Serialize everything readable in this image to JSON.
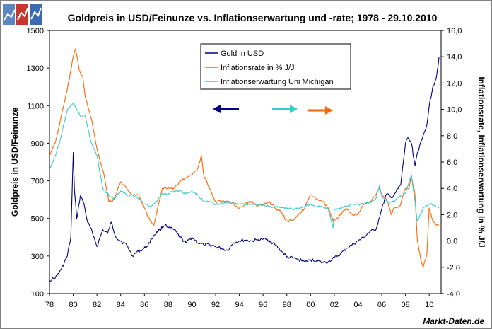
{
  "brand": {
    "name": "Markt-Daten.de"
  },
  "chart_data": {
    "type": "line",
    "title": "Goldpreis in USD/Feinunze vs. Inflationserwartung und -rate; 1978 - 29.10.2010",
    "ylabel_left": "Goldpreis in USD/Feinunze",
    "ylabel_right": "Inflationsrate, Inflationserwartung in % J/J",
    "xlim": [
      1978,
      2011
    ],
    "ylim_left": [
      100,
      1500
    ],
    "ylim_right": [
      -4,
      16
    ],
    "x_ticks": [
      "78",
      "80",
      "82",
      "84",
      "86",
      "88",
      "90",
      "92",
      "94",
      "96",
      "98",
      "00",
      "02",
      "04",
      "06",
      "08",
      "10"
    ],
    "x_tick_years": [
      1978,
      1980,
      1982,
      1984,
      1986,
      1988,
      1990,
      1992,
      1994,
      1996,
      1998,
      2000,
      2002,
      2004,
      2006,
      2008,
      2010
    ],
    "y_ticks_left": [
      "100",
      "300",
      "500",
      "700",
      "900",
      "1100",
      "1300",
      "1500"
    ],
    "y_ticks_right": [
      "-4,0",
      "-2,0",
      "0,0",
      "2,0",
      "4,0",
      "6,0",
      "8,0",
      "10,0",
      "12,0",
      "14,0",
      "16,0"
    ],
    "colors": {
      "gold": "#000080",
      "inflation": "#ff6600",
      "expectation": "#33cccc",
      "axis": "#000000",
      "plot_bg": "#ffffff"
    },
    "series": [
      {
        "name": "Gold in USD",
        "axis": "left",
        "color": "#000080",
        "x": [
          1978.0,
          1978.5,
          1979.0,
          1979.5,
          1979.8,
          1980.0,
          1980.1,
          1980.3,
          1980.6,
          1980.9,
          1981.2,
          1981.6,
          1982.0,
          1982.5,
          1982.9,
          1983.2,
          1983.6,
          1984.0,
          1984.5,
          1985.0,
          1985.3,
          1985.7,
          1986.2,
          1986.8,
          1987.3,
          1987.8,
          1988.0,
          1988.5,
          1989.0,
          1989.5,
          1990.0,
          1990.5,
          1991.0,
          1991.5,
          1992.0,
          1992.5,
          1993.0,
          1993.5,
          1994.0,
          1994.5,
          1995.0,
          1995.5,
          1996.0,
          1996.5,
          1997.0,
          1997.5,
          1998.0,
          1998.5,
          1999.0,
          1999.7,
          2000.0,
          2000.5,
          2001.0,
          2001.5,
          2002.0,
          2002.5,
          2003.0,
          2003.5,
          2004.0,
          2004.5,
          2005.0,
          2005.5,
          2006.0,
          2006.4,
          2006.8,
          2007.2,
          2007.6,
          2008.0,
          2008.2,
          2008.5,
          2008.8,
          2009.0,
          2009.4,
          2009.8,
          2010.0,
          2010.3,
          2010.6,
          2010.83
        ],
        "y": [
          170,
          185,
          230,
          300,
          400,
          850,
          650,
          500,
          620,
          580,
          480,
          430,
          350,
          440,
          420,
          480,
          400,
          380,
          360,
          300,
          320,
          330,
          350,
          410,
          440,
          470,
          450,
          440,
          400,
          370,
          400,
          370,
          360,
          360,
          350,
          340,
          330,
          370,
          380,
          385,
          380,
          385,
          390,
          385,
          360,
          330,
          295,
          290,
          280,
          270,
          280,
          275,
          265,
          270,
          290,
          310,
          340,
          360,
          380,
          400,
          430,
          440,
          550,
          630,
          610,
          640,
          680,
          900,
          930,
          900,
          780,
          850,
          920,
          1000,
          1100,
          1200,
          1250,
          1360
        ]
      },
      {
        "name": "Inflationsrate in % J/J",
        "axis": "right",
        "color": "#ff6600",
        "x": [
          1978.0,
          1978.5,
          1979.0,
          1979.5,
          1980.0,
          1980.2,
          1980.5,
          1980.8,
          1981.0,
          1981.3,
          1981.6,
          1982.0,
          1982.3,
          1982.6,
          1983.0,
          1983.3,
          1983.6,
          1984.0,
          1984.5,
          1985.0,
          1985.5,
          1986.0,
          1986.5,
          1986.8,
          1987.0,
          1987.5,
          1988.0,
          1988.5,
          1989.0,
          1989.5,
          1990.0,
          1990.5,
          1990.8,
          1991.0,
          1991.5,
          1992.0,
          1992.5,
          1993.0,
          1993.5,
          1994.0,
          1994.5,
          1995.0,
          1995.5,
          1996.0,
          1996.5,
          1997.0,
          1997.5,
          1998.0,
          1998.5,
          1999.0,
          1999.5,
          2000.0,
          2000.5,
          2001.0,
          2001.5,
          2001.9,
          2002.0,
          2002.5,
          2003.0,
          2003.5,
          2004.0,
          2004.5,
          2005.0,
          2005.5,
          2005.8,
          2006.0,
          2006.5,
          2006.8,
          2007.0,
          2007.5,
          2008.0,
          2008.3,
          2008.5,
          2008.8,
          2009.0,
          2009.3,
          2009.5,
          2009.8,
          2010.0,
          2010.3,
          2010.6,
          2010.83
        ],
        "y": [
          6.5,
          7.5,
          9.5,
          11.5,
          14.0,
          14.6,
          13.0,
          12.5,
          11.0,
          10.0,
          9.0,
          7.0,
          6.0,
          5.0,
          3.0,
          3.0,
          3.5,
          4.5,
          4.0,
          3.5,
          3.5,
          2.5,
          1.5,
          1.2,
          2.0,
          4.0,
          4.0,
          4.0,
          4.5,
          4.8,
          5.0,
          5.5,
          6.5,
          5.0,
          4.0,
          3.0,
          3.0,
          3.0,
          2.8,
          2.5,
          2.8,
          3.0,
          2.6,
          2.8,
          3.0,
          2.5,
          2.2,
          1.5,
          1.6,
          2.0,
          2.5,
          3.5,
          3.2,
          3.0,
          2.5,
          1.5,
          1.5,
          2.0,
          2.5,
          2.0,
          2.0,
          2.8,
          3.0,
          3.5,
          4.0,
          3.5,
          3.0,
          2.0,
          2.5,
          2.6,
          4.0,
          4.0,
          5.0,
          3.5,
          0.0,
          -1.5,
          -2.0,
          -1.0,
          2.5,
          1.5,
          1.2,
          1.2
        ]
      },
      {
        "name": "Inflationserwartung Uni Michigan",
        "axis": "right",
        "color": "#33cccc",
        "x": [
          1978.0,
          1978.5,
          1979.0,
          1979.5,
          1980.0,
          1980.3,
          1980.6,
          1981.0,
          1981.5,
          1982.0,
          1982.5,
          1983.0,
          1983.5,
          1984.0,
          1984.5,
          1985.0,
          1985.5,
          1986.0,
          1986.5,
          1987.0,
          1987.5,
          1988.0,
          1988.5,
          1989.0,
          1989.5,
          1990.0,
          1990.5,
          1991.0,
          1991.5,
          1992.0,
          1993.0,
          1994.0,
          1995.0,
          1996.0,
          1997.0,
          1998.0,
          1998.5,
          1999.0,
          2000.0,
          2000.5,
          2001.0,
          2001.5,
          2001.9,
          2002.0,
          2002.5,
          2003.0,
          2003.5,
          2004.0,
          2004.5,
          2005.0,
          2005.5,
          2005.8,
          2006.0,
          2006.5,
          2007.0,
          2007.5,
          2008.0,
          2008.3,
          2008.5,
          2008.8,
          2009.0,
          2009.5,
          2010.0,
          2010.5,
          2010.83
        ],
        "y": [
          5.5,
          6.5,
          8.0,
          10.0,
          10.5,
          10.0,
          9.5,
          9.5,
          7.5,
          6.5,
          4.0,
          3.5,
          3.2,
          3.8,
          3.5,
          3.5,
          3.2,
          2.8,
          2.6,
          3.0,
          3.6,
          3.6,
          3.8,
          3.8,
          3.6,
          3.8,
          3.5,
          3.0,
          3.0,
          2.8,
          2.9,
          2.8,
          2.8,
          2.7,
          2.6,
          2.5,
          2.4,
          2.5,
          2.8,
          2.6,
          2.6,
          2.4,
          1.0,
          2.4,
          2.5,
          2.6,
          2.8,
          2.8,
          2.8,
          2.9,
          3.2,
          4.2,
          3.4,
          3.0,
          3.0,
          3.4,
          3.6,
          4.5,
          5.0,
          3.0,
          1.5,
          2.5,
          2.8,
          2.7,
          2.5
        ]
      }
    ],
    "legend": {
      "placement": "top-center",
      "entries": [
        "Gold in USD",
        "Inflationsrate in % J/J",
        "Inflationserwartung Uni Michigan"
      ]
    },
    "axis_arrows": [
      {
        "series": "Gold in USD",
        "direction": "left"
      },
      {
        "series": "Inflationserwartung Uni Michigan",
        "direction": "right"
      },
      {
        "series": "Inflationsrate in % J/J",
        "direction": "right"
      }
    ]
  }
}
